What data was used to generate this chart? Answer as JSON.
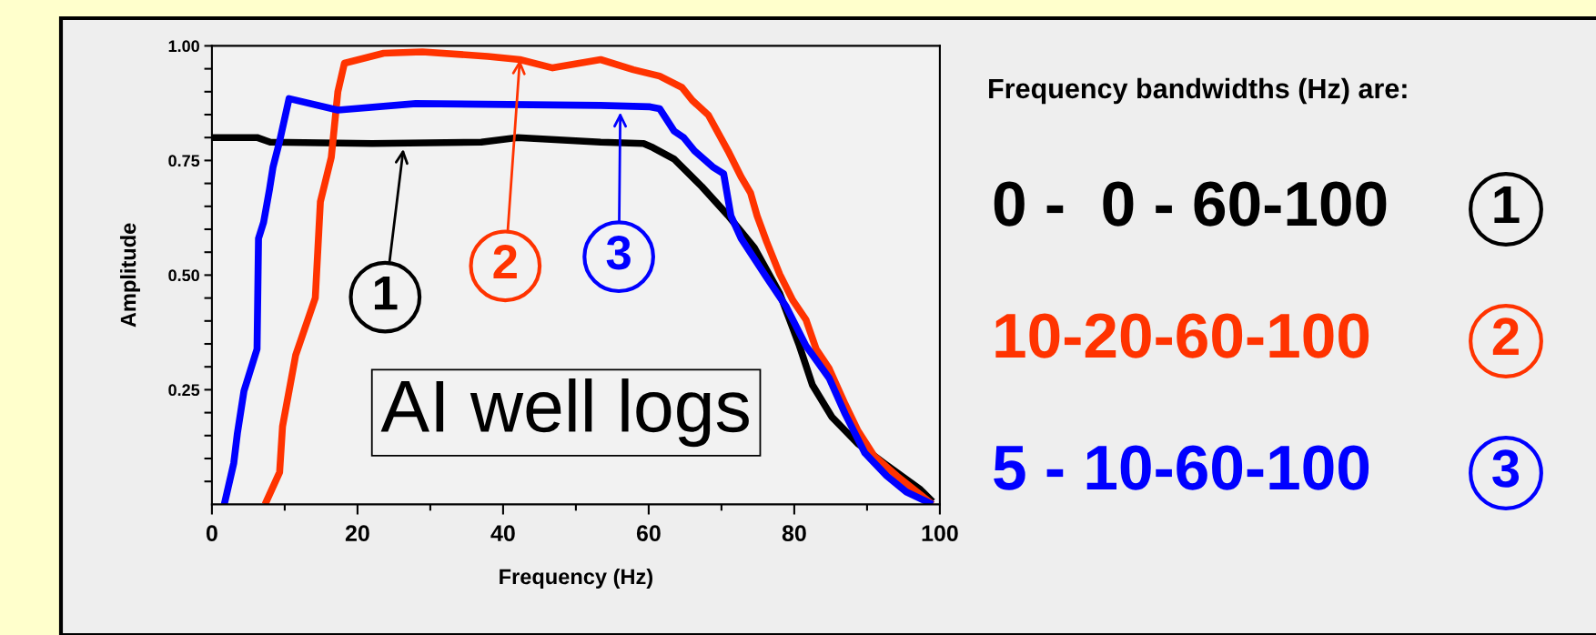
{
  "chart_data": {
    "type": "line",
    "xlabel": "Frequency (Hz)",
    "ylabel": "Amplitude",
    "xlim": [
      0,
      100
    ],
    "ylim": [
      0,
      1
    ],
    "xticks": [
      0,
      {
        "value": 10,
        "label": null
      },
      20,
      {
        "value": 30,
        "label": null
      },
      40,
      {
        "value": 50,
        "label": null
      },
      60,
      {
        "value": 70,
        "label": null
      },
      80,
      {
        "value": 90,
        "label": null
      },
      100
    ],
    "yticks": [
      {
        "value": 0.05,
        "label": null
      },
      {
        "value": 0.1,
        "label": null
      },
      {
        "value": 0.15,
        "label": null
      },
      {
        "value": 0.2,
        "label": null
      },
      {
        "value": 0.25,
        "label": "0.25"
      },
      {
        "value": 0.3,
        "label": null
      },
      {
        "value": 0.35,
        "label": null
      },
      {
        "value": 0.4,
        "label": null
      },
      {
        "value": 0.45,
        "label": null
      },
      {
        "value": 0.5,
        "label": "0.50"
      },
      {
        "value": 0.55,
        "label": null
      },
      {
        "value": 0.6,
        "label": null
      },
      {
        "value": 0.65,
        "label": null
      },
      {
        "value": 0.7,
        "label": null
      },
      {
        "value": 0.75,
        "label": "0.75"
      },
      {
        "value": 0.8,
        "label": null
      },
      {
        "value": 0.85,
        "label": null
      },
      {
        "value": 0.9,
        "label": null
      },
      {
        "value": 0.95,
        "label": null
      },
      {
        "value": 1.0,
        "label": "1.00"
      }
    ],
    "grid": false,
    "legend": false,
    "marker": "none",
    "line_style": "solid",
    "series": [
      {
        "color": "#000000",
        "x": [
          0,
          6.2,
          8,
          22,
          37,
          42,
          53.4,
          59.3,
          60.6,
          63.5,
          67.3,
          70.9,
          74.5,
          78,
          80.7,
          82.5,
          85.2,
          88.7,
          92.3,
          97.2,
          99
        ],
        "values": [
          0.8,
          0.8,
          0.79,
          0.787,
          0.79,
          0.8,
          0.79,
          0.787,
          0.778,
          0.753,
          0.693,
          0.63,
          0.56,
          0.46,
          0.346,
          0.26,
          0.19,
          0.133,
          0.09,
          0.034,
          0.006
        ]
      },
      {
        "color": "#ff3300",
        "x": [
          7.3,
          9.3,
          9.7,
          11.5,
          14.2,
          14.9,
          16.4,
          17.3,
          18.2,
          23.6,
          28.9,
          37.9,
          42.3,
          46.8,
          53.4,
          57.9,
          61.5,
          64.6,
          66,
          68.2,
          70.9,
          72.7,
          74,
          74.9,
          76.2,
          78,
          79.8,
          81.6,
          83,
          84.8,
          87,
          88.7,
          91,
          94.1,
          99
        ],
        "values": [
          0,
          0.07,
          0.17,
          0.325,
          0.45,
          0.66,
          0.757,
          0.9,
          0.962,
          0.984,
          0.987,
          0.977,
          0.97,
          0.952,
          0.97,
          0.948,
          0.934,
          0.909,
          0.881,
          0.849,
          0.771,
          0.714,
          0.679,
          0.629,
          0.573,
          0.502,
          0.445,
          0.403,
          0.339,
          0.296,
          0.218,
          0.162,
          0.105,
          0.062,
          0
        ]
      },
      {
        "color": "#0000ff",
        "x": [
          1.7,
          3,
          3.5,
          4.4,
          6.2,
          6.4,
          7.1,
          7.9,
          8.4,
          9.3,
          10.6,
          17.3,
          28,
          53.4,
          60.2,
          61.5,
          63.5,
          64.8,
          66.3,
          68.8,
          70.3,
          71.3,
          72.7,
          76.2,
          78.9,
          81.6,
          84.8,
          87,
          89.7,
          92.7,
          95.4,
          99
        ],
        "values": [
          0,
          0.09,
          0.155,
          0.247,
          0.339,
          0.58,
          0.615,
          0.686,
          0.736,
          0.792,
          0.885,
          0.86,
          0.874,
          0.87,
          0.867,
          0.863,
          0.814,
          0.8,
          0.771,
          0.736,
          0.721,
          0.629,
          0.58,
          0.495,
          0.431,
          0.346,
          0.275,
          0.197,
          0.112,
          0.062,
          0.027,
          0
        ]
      }
    ],
    "annotations": [
      "AI well logs",
      "Frequency bandwidths (Hz) are:",
      "0 -  0 - 60-100",
      "10-20-60-100",
      "5 - 10-60-100",
      {
        "text": "1",
        "x": 26.3,
        "y": 0.775
      },
      {
        "text": "2",
        "x": 42.3,
        "y": 0.97
      },
      {
        "text": "3",
        "x": 56.1,
        "y": 0.855
      }
    ]
  }
}
